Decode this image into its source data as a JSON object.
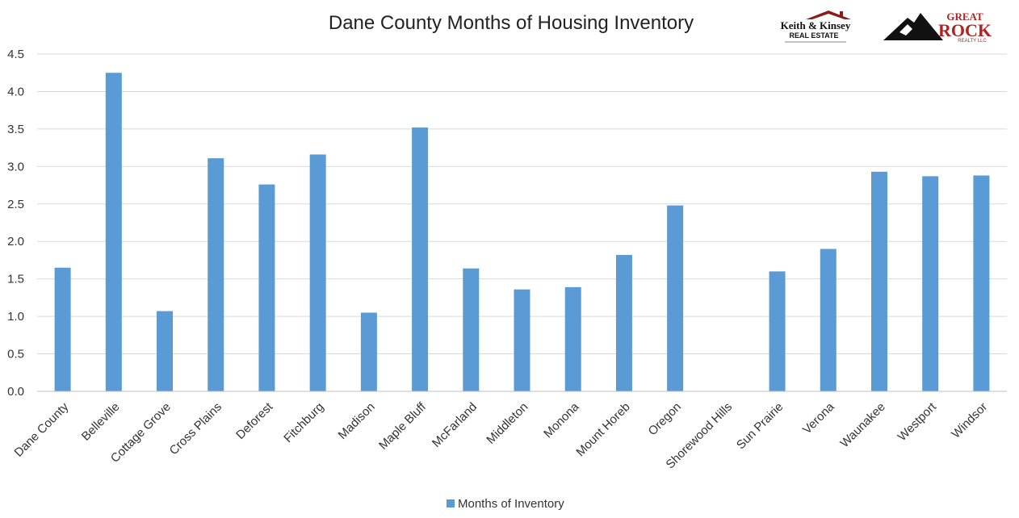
{
  "chart_data": {
    "type": "bar",
    "title": "Dane County Months of Housing Inventory",
    "categories": [
      "Dane County",
      "Belleville",
      "Cottage Grove",
      "Cross Plains",
      "Deforest",
      "Fitchburg",
      "Madison",
      "Maple Bluff",
      "McFarland",
      "Middleton",
      "Monona",
      "Mount Horeb",
      "Oregon",
      "Shorewood Hills",
      "Sun Prairie",
      "Verona",
      "Waunakee",
      "Westport",
      "Windsor"
    ],
    "series": [
      {
        "name": "Months of Inventory",
        "color": "#5B9BD5",
        "values": [
          1.65,
          4.25,
          1.07,
          3.11,
          2.76,
          3.16,
          1.05,
          3.52,
          1.64,
          1.36,
          1.39,
          1.82,
          2.48,
          0,
          1.6,
          1.9,
          2.93,
          2.87,
          2.88
        ]
      }
    ],
    "yticks": [
      "0.0",
      "0.5",
      "1.0",
      "1.5",
      "2.0",
      "2.5",
      "3.0",
      "3.5",
      "4.0",
      "4.5"
    ],
    "ylim": [
      0,
      4.5
    ],
    "grid": true,
    "legend_position": "bottom"
  },
  "logos": {
    "keith_kinsey": {
      "line1": "Keith & Kinsey",
      "line2": "REAL ESTATE",
      "color": "#8B1A1A"
    },
    "great_rock": {
      "line1": "GREAT",
      "line2": "ROCK",
      "line3": "REALTY LLC",
      "color": "#B22222"
    }
  }
}
